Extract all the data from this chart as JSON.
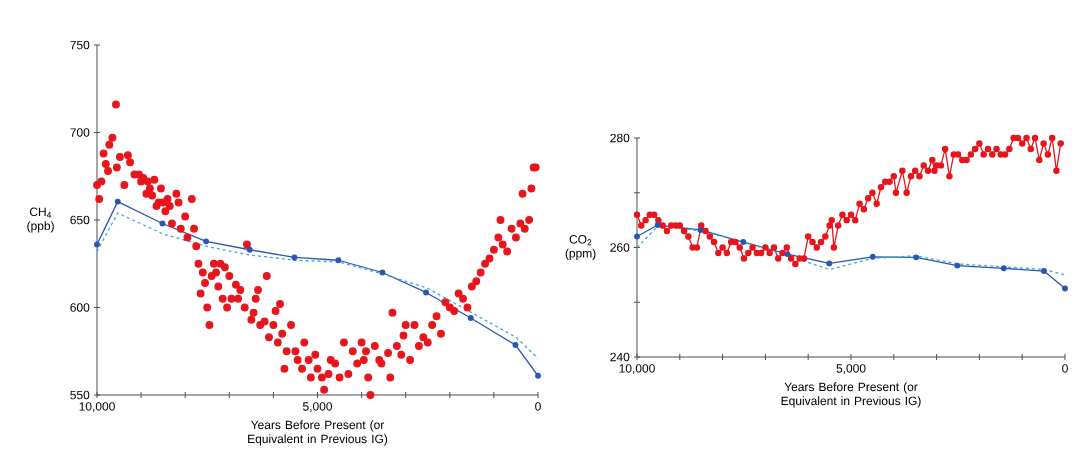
{
  "chart_data": [
    {
      "type": "scatter",
      "ylabel": "CH$_{4}$ (ppb)",
      "xlabel": "Years Before Present (or Equivalent in Previous IG)",
      "xlim": [
        10000,
        0
      ],
      "ylim": [
        550,
        750
      ],
      "xticks": [
        {
          "value": 10000,
          "label": "10,000"
        },
        {
          "value": 9000,
          "label": null
        },
        {
          "value": 8000,
          "label": null
        },
        {
          "value": 7000,
          "label": null
        },
        {
          "value": 6000,
          "label": null
        },
        {
          "value": 5000,
          "label": "5,000"
        },
        {
          "value": 4000,
          "label": null
        },
        {
          "value": 3000,
          "label": null
        },
        {
          "value": 2000,
          "label": null
        },
        {
          "value": 1000,
          "label": null
        },
        0
      ],
      "yticks": [
        550,
        600,
        650,
        700,
        750
      ],
      "series": [
        {
          "color": "#e8141c",
          "marker": "circle",
          "x": [
            10000,
            9950,
            9900,
            9850,
            9800,
            9750,
            9720,
            9650,
            9570,
            9550,
            9480,
            9380,
            9300,
            9250,
            9150,
            9050,
            9000,
            8950,
            8880,
            8850,
            8800,
            8750,
            8700,
            8650,
            8600,
            8550,
            8500,
            8450,
            8400,
            8350,
            8300,
            8200,
            8150,
            8100,
            8000,
            7950,
            7850,
            7800,
            7750,
            7700,
            7650,
            7600,
            7550,
            7500,
            7450,
            7400,
            7350,
            7300,
            7250,
            7200,
            7150,
            7100,
            7050,
            7000,
            6950,
            6850,
            6800,
            6750,
            6650,
            6600,
            6500,
            6450,
            6400,
            6350,
            6300,
            6200,
            6150,
            6100,
            6000,
            5950,
            5900,
            5850,
            5800,
            5750,
            5700,
            5600,
            5500,
            5450,
            5350,
            5300,
            5200,
            5150,
            5050,
            5000,
            4900,
            4850,
            4750,
            4700,
            4600,
            4500,
            4400,
            4300,
            4200,
            4100,
            4000,
            3950,
            3900,
            3850,
            3800,
            3700,
            3600,
            3550,
            3400,
            3350,
            3300,
            3200,
            3100,
            3050,
            3000,
            2900,
            2800,
            2700,
            2600,
            2500,
            2400,
            2300,
            2200,
            2100,
            2000,
            1900,
            1800,
            1700,
            1600,
            1500,
            1400,
            1300,
            1200,
            1100,
            1000,
            900,
            850,
            800,
            700,
            600,
            500,
            400,
            350,
            300,
            200,
            150,
            100,
            50
          ],
          "values": [
            670,
            662,
            672,
            688,
            682,
            678,
            693,
            697,
            716,
            680,
            686,
            670,
            687,
            683,
            676,
            676,
            672,
            674,
            665,
            672,
            668,
            664,
            673,
            658,
            660,
            668,
            660,
            655,
            662,
            658,
            648,
            665,
            660,
            645,
            652,
            640,
            662,
            645,
            635,
            625,
            608,
            620,
            614,
            600,
            590,
            618,
            625,
            620,
            612,
            625,
            605,
            623,
            600,
            618,
            605,
            613,
            605,
            610,
            600,
            636,
            593,
            597,
            605,
            610,
            590,
            592,
            618,
            583,
            590,
            598,
            580,
            602,
            585,
            565,
            575,
            590,
            575,
            570,
            565,
            580,
            570,
            560,
            573,
            565,
            560,
            553,
            562,
            570,
            568,
            560,
            580,
            562,
            575,
            568,
            580,
            570,
            575,
            560,
            550,
            578,
            570,
            568,
            574,
            560,
            597,
            578,
            573,
            584,
            590,
            570,
            590,
            578,
            583,
            580,
            590,
            595,
            585,
            603,
            600,
            598,
            608,
            605,
            600,
            612,
            615,
            620,
            625,
            628,
            633,
            640,
            650,
            636,
            632,
            645,
            640,
            648,
            665,
            645,
            650,
            668,
            680,
            680
          ]
        },
        {
          "type": "line",
          "color": "#2a55b0",
          "marker": "circle",
          "line_style": "solid",
          "x": [
            10000,
            9530,
            8516,
            7526,
            6537,
            5523,
            4526,
            3528,
            2539,
            1525,
            511,
            0
          ],
          "values": [
            636,
            660.5,
            648,
            637.8,
            633,
            628.6,
            627,
            620,
            608.6,
            594,
            578.6,
            561
          ]
        },
        {
          "type": "line",
          "color": "#3aa7d8",
          "marker": "none",
          "line_style": "dashed",
          "x": [
            10000,
            9530,
            8500,
            7530,
            6540,
            5500,
            4500,
            3500,
            2500,
            1500,
            500,
            0
          ],
          "values": [
            632,
            654,
            642,
            635,
            630,
            627,
            626,
            619,
            611,
            597,
            583,
            571
          ]
        }
      ]
    },
    {
      "type": "line",
      "ylabel": "CO$_{2}$ (ppm)",
      "xlabel": "Years Before Present (or Equivalent in Previous IG)",
      "xlim": [
        10000,
        0
      ],
      "ylim": [
        240,
        280
      ],
      "xticks": [
        {
          "value": 10000,
          "label": "10,000"
        },
        {
          "value": 9000,
          "label": null
        },
        {
          "value": 8000,
          "label": null
        },
        {
          "value": 7000,
          "label": null
        },
        {
          "value": 6000,
          "label": null
        },
        {
          "value": 5000,
          "label": "5,000"
        },
        {
          "value": 4000,
          "label": null
        },
        {
          "value": 3000,
          "label": null
        },
        {
          "value": 2000,
          "label": null
        },
        {
          "value": 1000,
          "label": null
        },
        0
      ],
      "yticks": [
        240,
        {
          "value": 250,
          "label": null
        },
        260,
        {
          "value": 270,
          "label": null
        },
        280
      ],
      "series": [
        {
          "color": "#e8141c",
          "marker": "circle",
          "line_style": "solid",
          "x": [
            10000,
            9900,
            9800,
            9700,
            9600,
            9500,
            9400,
            9300,
            9200,
            9100,
            9000,
            8900,
            8800,
            8700,
            8600,
            8500,
            8400,
            8300,
            8200,
            8100,
            8000,
            7900,
            7800,
            7700,
            7600,
            7500,
            7400,
            7300,
            7200,
            7100,
            7000,
            6900,
            6800,
            6700,
            6600,
            6500,
            6400,
            6300,
            6200,
            6100,
            6000,
            5900,
            5800,
            5700,
            5600,
            5500,
            5450,
            5400,
            5300,
            5200,
            5100,
            5000,
            4900,
            4800,
            4700,
            4600,
            4500,
            4400,
            4300,
            4200,
            4100,
            4000,
            3950,
            3800,
            3700,
            3600,
            3500,
            3400,
            3300,
            3200,
            3100,
            3050,
            3000,
            2900,
            2800,
            2700,
            2600,
            2500,
            2400,
            2300,
            2200,
            2100,
            2000,
            1900,
            1800,
            1700,
            1600,
            1500,
            1400,
            1300,
            1200,
            1100,
            1000,
            900,
            800,
            700,
            600,
            500,
            400,
            300,
            200,
            100
          ],
          "values": [
            266,
            264,
            265,
            266,
            266,
            265,
            264,
            263,
            264,
            264,
            264,
            263,
            262,
            260,
            260,
            264,
            263,
            262,
            261,
            259,
            260,
            259,
            261,
            261,
            260,
            258,
            259,
            260,
            259,
            259,
            260,
            259,
            260,
            258,
            259,
            260,
            258,
            257,
            258,
            258,
            262,
            261,
            260,
            261,
            262,
            264,
            265,
            260,
            264,
            266,
            265,
            266,
            265,
            268,
            267,
            269,
            270,
            268,
            271,
            272,
            272,
            273,
            270,
            274,
            270,
            273,
            274,
            273,
            275,
            274,
            276,
            274,
            275,
            275,
            278,
            273,
            277,
            277,
            276,
            276,
            277,
            278,
            279,
            277,
            278,
            277,
            278,
            277,
            277,
            278,
            280,
            280,
            279,
            280,
            278,
            280,
            276,
            279,
            277,
            280,
            274,
            279
          ]
        },
        {
          "color": "#2a55b0",
          "marker": "circle",
          "line_style": "solid",
          "x": [
            10000,
            9516,
            8516,
            7516,
            6484,
            5508,
            4492,
            3477,
            2516,
            1430,
            492,
            0
          ],
          "values": [
            262,
            264.1,
            263.2,
            261,
            258.8,
            257.1,
            258.3,
            258.2,
            256.7,
            256.2,
            255.7,
            252.5
          ]
        },
        {
          "color": "#3aa7d8",
          "marker": "none",
          "line_style": "dashed",
          "x": [
            10000,
            9500,
            8500,
            7500,
            6500,
            5500,
            4500,
            3500,
            2500,
            1500,
            500,
            0
          ],
          "values": [
            260,
            264,
            263,
            261,
            258.5,
            256,
            258,
            258.5,
            257,
            256.5,
            256,
            255
          ]
        }
      ]
    }
  ]
}
